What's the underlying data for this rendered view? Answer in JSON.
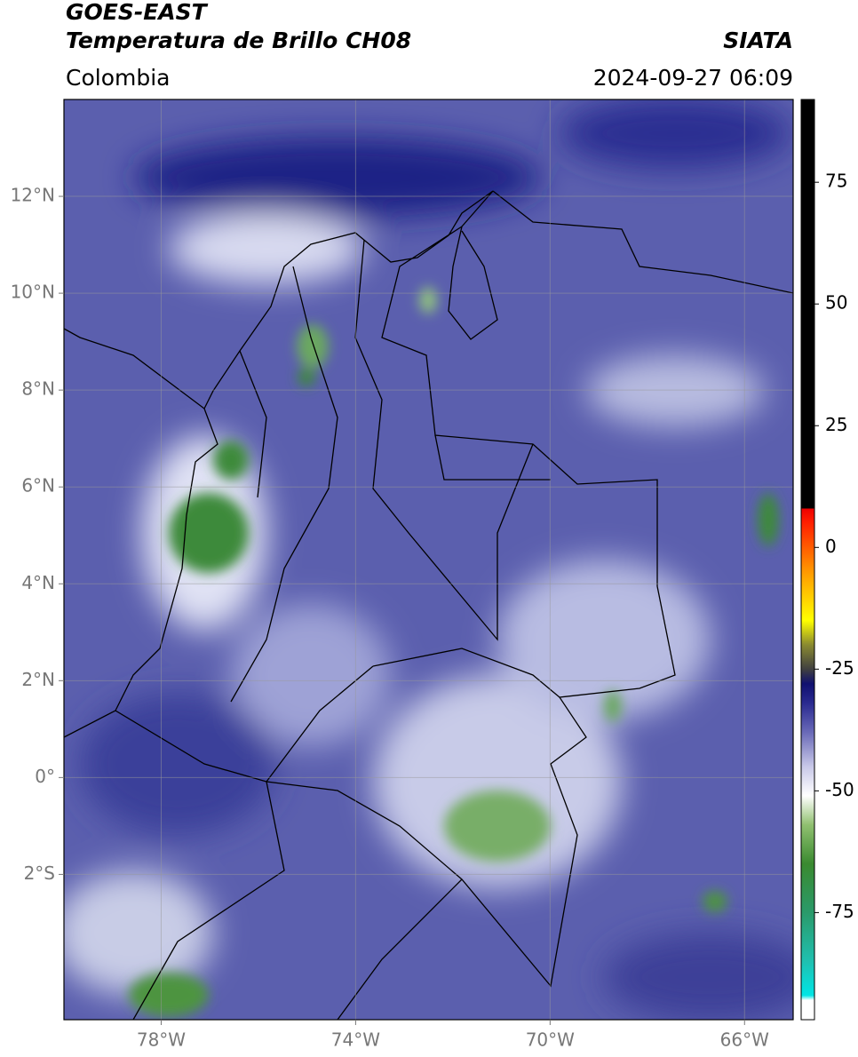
{
  "header": {
    "title": "GOES-EAST",
    "subtitle": "Temperatura de Brillo CH08",
    "source": "SIATA",
    "region": "Colombia",
    "timestamp": "2024-09-27 06:09"
  },
  "map": {
    "xlim": [
      -80,
      -65
    ],
    "ylim": [
      -5,
      14
    ],
    "xticks": [
      {
        "value": -78,
        "label": "78°W"
      },
      {
        "value": -74,
        "label": "74°W"
      },
      {
        "value": -70,
        "label": "70°W"
      },
      {
        "value": -66,
        "label": "66°W"
      }
    ],
    "yticks": [
      {
        "value": 12,
        "label": "12°N"
      },
      {
        "value": 10,
        "label": "10°N"
      },
      {
        "value": 8,
        "label": "8°N"
      },
      {
        "value": 6,
        "label": "6°N"
      },
      {
        "value": 4,
        "label": "4°N"
      },
      {
        "value": 2,
        "label": "2°N"
      },
      {
        "value": 0,
        "label": "0°"
      },
      {
        "value": -2,
        "label": "2°S"
      }
    ],
    "grid": true
  },
  "colorbar": {
    "clim": [
      -97,
      92
    ],
    "ticks": [
      75,
      50,
      25,
      0,
      -25,
      -50,
      -75
    ],
    "stops": [
      [
        -97,
        "#ffffff"
      ],
      [
        -93,
        "#ffffff"
      ],
      [
        -92,
        "#00e5e5"
      ],
      [
        -85,
        "#20c0b0"
      ],
      [
        -75,
        "#2a9a6a"
      ],
      [
        -65,
        "#3a8a30"
      ],
      [
        -57,
        "#90c070"
      ],
      [
        -51,
        "#ffffff"
      ],
      [
        -45,
        "#c8c8e8"
      ],
      [
        -38,
        "#6a6ab8"
      ],
      [
        -32,
        "#2a2a90"
      ],
      [
        -28,
        "#101070"
      ],
      [
        -25,
        "#404040"
      ],
      [
        -20,
        "#8a8a30"
      ],
      [
        -15,
        "#ffff00"
      ],
      [
        -5,
        "#ff9900"
      ],
      [
        5,
        "#ff2000"
      ],
      [
        8,
        "#ee0000"
      ],
      [
        8,
        "#000000"
      ],
      [
        92,
        "#000000"
      ]
    ]
  }
}
